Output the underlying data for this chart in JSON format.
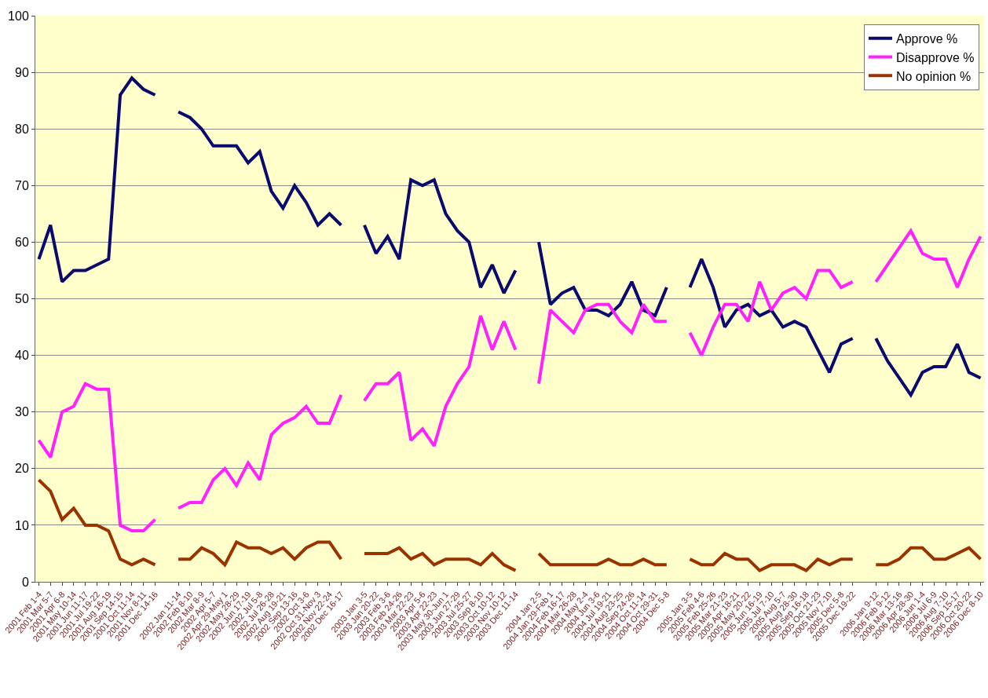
{
  "chart_data": {
    "type": "line",
    "categories": [
      "2001 Feb 1-4",
      "2001 Mar 5-7",
      "2001 Apr 6-8",
      "2001 May 10-14",
      "2001 Jun 11-17",
      "2001 Jul 19-22",
      "2001 Aug 16-19",
      "2001 Sep 14-15",
      "2001 Oct 11-14",
      "2001 Nov 8-11",
      "2001 Dec 14-16",
      null,
      "2002 Jan 11-14",
      "2002 Feb 8-10",
      "2002 Mar 8-9",
      "2002 Apr 5-7",
      "2002 Apr 29-May 1",
      "2002 May 28-29",
      "2002 Jun 17-19",
      "2002 Jul 5-8",
      "2002 Jul 26-28",
      "2002 Aug 19-21",
      "2002 Sep 13-16",
      "2002 Oct 3-6",
      "2002 Oct 31-Nov 3",
      "2002 Nov 22-24",
      "2002 Dec 16-17",
      null,
      "2003 Jan 3-5",
      "2003 Jan 20-22",
      "2003 Feb 3-6",
      "2003 Feb 24-26",
      "2003 Mar 22-23",
      "2003 Apr 5-6",
      "2003 Apr 22-23",
      "2003 May 30-Jun 1",
      "2003 Jun 27-29",
      "2003 Jul 25-27",
      "2003 Sep 8-10",
      "2003 Oct 10-12",
      "2003 Nov 10-12",
      "2003 Dec 11-14",
      null,
      "2004 Jan 2-5",
      "2004 Jan 29-Feb 1",
      "2004 Feb 16-17",
      "2004 Mar 26-28",
      "2004 May 2-4",
      "2004 Jun 3-6",
      "2004 Jul 19-21",
      "2004 Aug 23-25",
      "2004 Sep 24-26",
      "2004 Oct 11-14",
      "2004 Oct 29-31",
      "2004 Dec 5-8",
      null,
      "2005 Jan 3-5",
      "2005 Feb 4-6",
      "2005 Feb 25-26",
      "2005 Mar 21-23",
      "2005 Apr 18-21",
      "2005 May 20-22",
      "2005 Jun 16-19",
      "2005 Jul 7-10",
      "2005 Aug 5-7",
      "2005 Aug 28-30",
      "2005 Sep 16-18",
      "2005 Oct 21-23",
      "2005 Nov 7-10",
      "2005 Dec 5-8",
      "2005 Dec 19-22",
      null,
      "2006 Jan 9-12",
      "2006 Feb 9-12",
      "2006 Mar 13-16",
      "2006 Apr 28-30",
      "2006 Jun 1-4",
      "2006 Jul 6-9",
      "2006 Aug 7-10",
      "2006 Sep 15-17",
      "2006 Oct 20-22",
      "2006 Dec 8-10"
    ],
    "series": [
      {
        "name": "Approve %",
        "color": "#0a0a6e",
        "values": [
          57,
          63,
          53,
          55,
          55,
          56,
          57,
          86,
          89,
          87,
          86,
          null,
          83,
          82,
          80,
          77,
          77,
          77,
          74,
          76,
          69,
          66,
          70,
          67,
          63,
          65,
          63,
          null,
          63,
          58,
          61,
          57,
          71,
          70,
          71,
          65,
          62,
          60,
          52,
          56,
          51,
          55,
          null,
          60,
          49,
          51,
          52,
          48,
          48,
          47,
          49,
          53,
          48,
          47,
          52,
          null,
          52,
          57,
          52,
          45,
          48,
          49,
          47,
          48,
          45,
          46,
          45,
          41,
          37,
          42,
          43,
          null,
          43,
          39,
          36,
          33,
          37,
          38,
          38,
          42,
          37,
          36
        ]
      },
      {
        "name": "Disapprove %",
        "color": "#ff22ff",
        "values": [
          25,
          22,
          30,
          31,
          35,
          34,
          34,
          10,
          9,
          9,
          11,
          null,
          13,
          14,
          14,
          18,
          20,
          17,
          21,
          18,
          26,
          28,
          29,
          31,
          28,
          28,
          33,
          null,
          32,
          35,
          35,
          37,
          25,
          27,
          24,
          31,
          35,
          38,
          47,
          41,
          46,
          41,
          null,
          35,
          48,
          46,
          44,
          48,
          49,
          49,
          46,
          44,
          49,
          46,
          46,
          null,
          44,
          40,
          45,
          49,
          49,
          46,
          53,
          48,
          51,
          52,
          50,
          55,
          55,
          52,
          53,
          null,
          53,
          56,
          59,
          62,
          58,
          57,
          57,
          52,
          57,
          61
        ]
      },
      {
        "name": "No opinion %",
        "color": "#993300",
        "values": [
          18,
          16,
          11,
          13,
          10,
          10,
          9,
          4,
          3,
          4,
          3,
          null,
          4,
          4,
          6,
          5,
          3,
          7,
          6,
          6,
          5,
          6,
          4,
          6,
          7,
          7,
          4,
          null,
          5,
          5,
          5,
          6,
          4,
          5,
          3,
          4,
          4,
          4,
          3,
          5,
          3,
          2,
          null,
          5,
          3,
          3,
          3,
          3,
          3,
          4,
          3,
          3,
          4,
          3,
          3,
          null,
          4,
          3,
          3,
          5,
          4,
          4,
          2,
          3,
          3,
          3,
          2,
          4,
          3,
          4,
          4,
          null,
          3,
          3,
          4,
          6,
          6,
          4,
          4,
          5,
          6,
          4
        ]
      }
    ],
    "ylim": [
      0,
      100
    ],
    "yticks": [
      0,
      10,
      20,
      30,
      40,
      50,
      60,
      70,
      80,
      90,
      100
    ],
    "grid": "y",
    "legend": "top right",
    "marker": "none",
    "line_style": "solid"
  }
}
